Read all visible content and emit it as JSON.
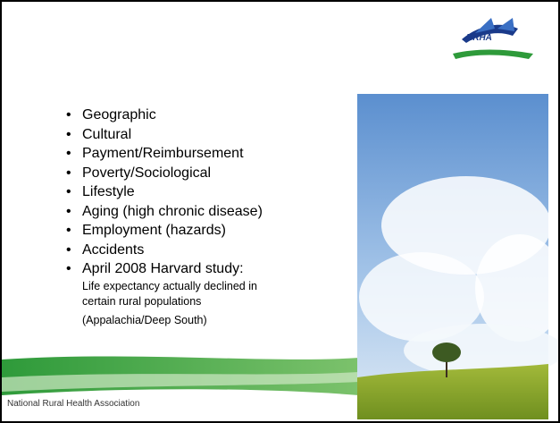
{
  "logo": {
    "text": "NRHA"
  },
  "bullets": [
    {
      "text": "Geographic"
    },
    {
      "text": "Cultural"
    },
    {
      "text": "Payment/Reimbursement"
    },
    {
      "text": "Poverty/Sociological"
    },
    {
      "text": "Lifestyle"
    },
    {
      "text": "Aging (high chronic disease)"
    },
    {
      "text": "Employment (hazards)"
    },
    {
      "text": "Accidents"
    },
    {
      "text": "April 2008 Harvard  study:",
      "details": [
        "Life expectancy actually declined in",
        "certain rural populations",
        "(Appalachia/Deep South)"
      ]
    }
  ],
  "footer": {
    "text": "National Rural Health Association"
  }
}
